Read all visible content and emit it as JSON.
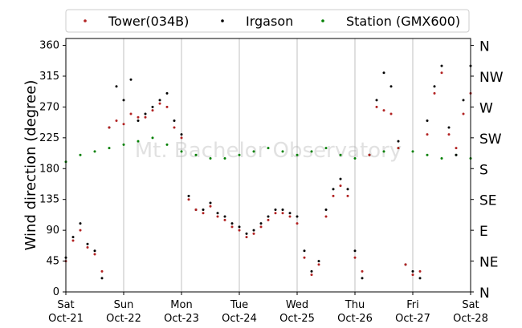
{
  "chart_data": {
    "type": "scatter",
    "title": "",
    "ylabel": "Wind direction (degree)",
    "xlabel": "",
    "ylim": [
      0,
      370
    ],
    "xlim": [
      "2022-10-21",
      "2022-10-28"
    ],
    "grid": "vertical lines at day boundaries",
    "legend_position": "top-center, single row, framed",
    "yticks": [
      0,
      45,
      90,
      135,
      180,
      225,
      270,
      315,
      360
    ],
    "ytick_labels": [
      "0",
      "45",
      "90",
      "135",
      "180",
      "225",
      "270",
      "315",
      "360"
    ],
    "right_axis_labels": [
      {
        "value": 0,
        "label": "N"
      },
      {
        "value": 45,
        "label": "NE"
      },
      {
        "value": 90,
        "label": "E"
      },
      {
        "value": 135,
        "label": "SE"
      },
      {
        "value": 180,
        "label": "S"
      },
      {
        "value": 225,
        "label": "SW"
      },
      {
        "value": 270,
        "label": "W"
      },
      {
        "value": 315,
        "label": "NW"
      },
      {
        "value": 360,
        "label": "N"
      }
    ],
    "xticks": [
      {
        "date": "2022-10-21",
        "line1": "Sat",
        "line2": "Oct-21"
      },
      {
        "date": "2022-10-22",
        "line1": "Sun",
        "line2": "Oct-22"
      },
      {
        "date": "2022-10-23",
        "line1": "Mon",
        "line2": "Oct-23"
      },
      {
        "date": "2022-10-24",
        "line1": "Tue",
        "line2": "Oct-24"
      },
      {
        "date": "2022-10-25",
        "line1": "Wed",
        "line2": "Oct-25"
      },
      {
        "date": "2022-10-26",
        "line1": "Thu",
        "line2": "Oct-26"
      },
      {
        "date": "2022-10-27",
        "line1": "Fri",
        "line2": "Oct-27"
      },
      {
        "date": "2022-10-28",
        "line1": "Sat",
        "line2": "Oct-28"
      }
    ],
    "watermark": "Mt. Bachelor Observatory",
    "series": [
      {
        "name": "Station (GMX600)",
        "color": "#008000",
        "x": [
          "2022-10-21 00:00",
          "2022-10-21 06:00",
          "2022-10-21 12:00",
          "2022-10-21 18:00",
          "2022-10-22 00:00",
          "2022-10-22 06:00",
          "2022-10-22 12:00",
          "2022-10-22 18:00",
          "2022-10-23 00:00",
          "2022-10-23 06:00",
          "2022-10-23 12:00",
          "2022-10-23 18:00",
          "2022-10-24 00:00",
          "2022-10-24 06:00",
          "2022-10-24 12:00",
          "2022-10-24 18:00",
          "2022-10-25 00:00",
          "2022-10-25 06:00",
          "2022-10-25 12:00",
          "2022-10-25 18:00",
          "2022-10-26 00:00",
          "2022-10-26 06:00",
          "2022-10-26 12:00",
          "2022-10-26 18:00",
          "2022-10-27 00:00",
          "2022-10-27 06:00",
          "2022-10-27 12:00",
          "2022-10-27 18:00",
          "2022-10-28 00:00"
        ],
        "y": [
          190,
          200,
          205,
          210,
          215,
          220,
          225,
          215,
          205,
          200,
          195,
          195,
          200,
          205,
          210,
          205,
          200,
          205,
          210,
          200,
          195,
          200,
          205,
          210,
          205,
          200,
          195,
          200,
          195
        ]
      },
      {
        "name": "Irgason",
        "color": "#000000",
        "x": [
          "2022-10-21 00:00",
          "2022-10-21 03:00",
          "2022-10-21 06:00",
          "2022-10-21 09:00",
          "2022-10-21 12:00",
          "2022-10-21 15:00",
          "2022-10-21 18:00",
          "2022-10-21 21:00",
          "2022-10-22 00:00",
          "2022-10-22 03:00",
          "2022-10-22 06:00",
          "2022-10-22 09:00",
          "2022-10-22 12:00",
          "2022-10-22 15:00",
          "2022-10-22 18:00",
          "2022-10-22 21:00",
          "2022-10-23 00:00",
          "2022-10-23 03:00",
          "2022-10-23 06:00",
          "2022-10-23 09:00",
          "2022-10-23 12:00",
          "2022-10-23 15:00",
          "2022-10-23 18:00",
          "2022-10-23 21:00",
          "2022-10-24 00:00",
          "2022-10-24 03:00",
          "2022-10-24 06:00",
          "2022-10-24 09:00",
          "2022-10-24 12:00",
          "2022-10-24 15:00",
          "2022-10-24 18:00",
          "2022-10-24 21:00",
          "2022-10-25 00:00",
          "2022-10-25 03:00",
          "2022-10-25 06:00",
          "2022-10-25 09:00",
          "2022-10-25 12:00",
          "2022-10-25 15:00",
          "2022-10-25 18:00",
          "2022-10-25 21:00",
          "2022-10-26 00:00",
          "2022-10-26 03:00",
          "2022-10-26 06:00",
          "2022-10-26 09:00",
          "2022-10-26 12:00",
          "2022-10-26 15:00",
          "2022-10-26 18:00",
          "2022-10-26 21:00",
          "2022-10-27 00:00",
          "2022-10-27 03:00",
          "2022-10-27 06:00",
          "2022-10-27 09:00",
          "2022-10-27 12:00",
          "2022-10-27 15:00",
          "2022-10-27 18:00",
          "2022-10-27 21:00",
          "2022-10-28 00:00"
        ],
        "y": [
          50,
          80,
          100,
          70,
          60,
          20,
          240,
          300,
          280,
          310,
          250,
          260,
          270,
          280,
          290,
          250,
          230,
          140,
          120,
          120,
          130,
          115,
          110,
          100,
          95,
          85,
          90,
          100,
          110,
          120,
          120,
          115,
          110,
          60,
          30,
          45,
          120,
          150,
          165,
          150,
          60,
          20,
          200,
          280,
          320,
          300,
          220,
          40,
          30,
          20,
          250,
          300,
          330,
          240,
          200,
          280,
          330
        ]
      },
      {
        "name": "Tower(034B)",
        "color": "#b22222",
        "x": [
          "2022-10-21 00:00",
          "2022-10-21 03:00",
          "2022-10-21 06:00",
          "2022-10-21 09:00",
          "2022-10-21 12:00",
          "2022-10-21 15:00",
          "2022-10-21 18:00",
          "2022-10-21 21:00",
          "2022-10-22 00:00",
          "2022-10-22 03:00",
          "2022-10-22 06:00",
          "2022-10-22 09:00",
          "2022-10-22 12:00",
          "2022-10-22 15:00",
          "2022-10-22 18:00",
          "2022-10-22 21:00",
          "2022-10-23 00:00",
          "2022-10-23 03:00",
          "2022-10-23 06:00",
          "2022-10-23 09:00",
          "2022-10-23 12:00",
          "2022-10-23 15:00",
          "2022-10-23 18:00",
          "2022-10-23 21:00",
          "2022-10-24 00:00",
          "2022-10-24 03:00",
          "2022-10-24 06:00",
          "2022-10-24 09:00",
          "2022-10-24 12:00",
          "2022-10-24 15:00",
          "2022-10-24 18:00",
          "2022-10-24 21:00",
          "2022-10-25 00:00",
          "2022-10-25 03:00",
          "2022-10-25 06:00",
          "2022-10-25 09:00",
          "2022-10-25 12:00",
          "2022-10-25 15:00",
          "2022-10-25 18:00",
          "2022-10-25 21:00",
          "2022-10-26 00:00",
          "2022-10-26 03:00",
          "2022-10-26 06:00",
          "2022-10-26 09:00",
          "2022-10-26 12:00",
          "2022-10-26 15:00",
          "2022-10-26 18:00",
          "2022-10-26 21:00",
          "2022-10-27 00:00",
          "2022-10-27 03:00",
          "2022-10-27 06:00",
          "2022-10-27 09:00",
          "2022-10-27 12:00",
          "2022-10-27 15:00",
          "2022-10-27 18:00",
          "2022-10-27 21:00",
          "2022-10-28 00:00"
        ],
        "y": [
          45,
          75,
          90,
          65,
          55,
          30,
          240,
          250,
          245,
          260,
          255,
          255,
          265,
          275,
          270,
          240,
          225,
          135,
          120,
          115,
          125,
          110,
          105,
          95,
          90,
          80,
          85,
          95,
          105,
          115,
          115,
          110,
          100,
          50,
          25,
          40,
          110,
          140,
          155,
          140,
          50,
          30,
          200,
          270,
          265,
          260,
          210,
          40,
          25,
          30,
          230,
          290,
          320,
          230,
          210,
          260,
          290
        ]
      }
    ]
  }
}
